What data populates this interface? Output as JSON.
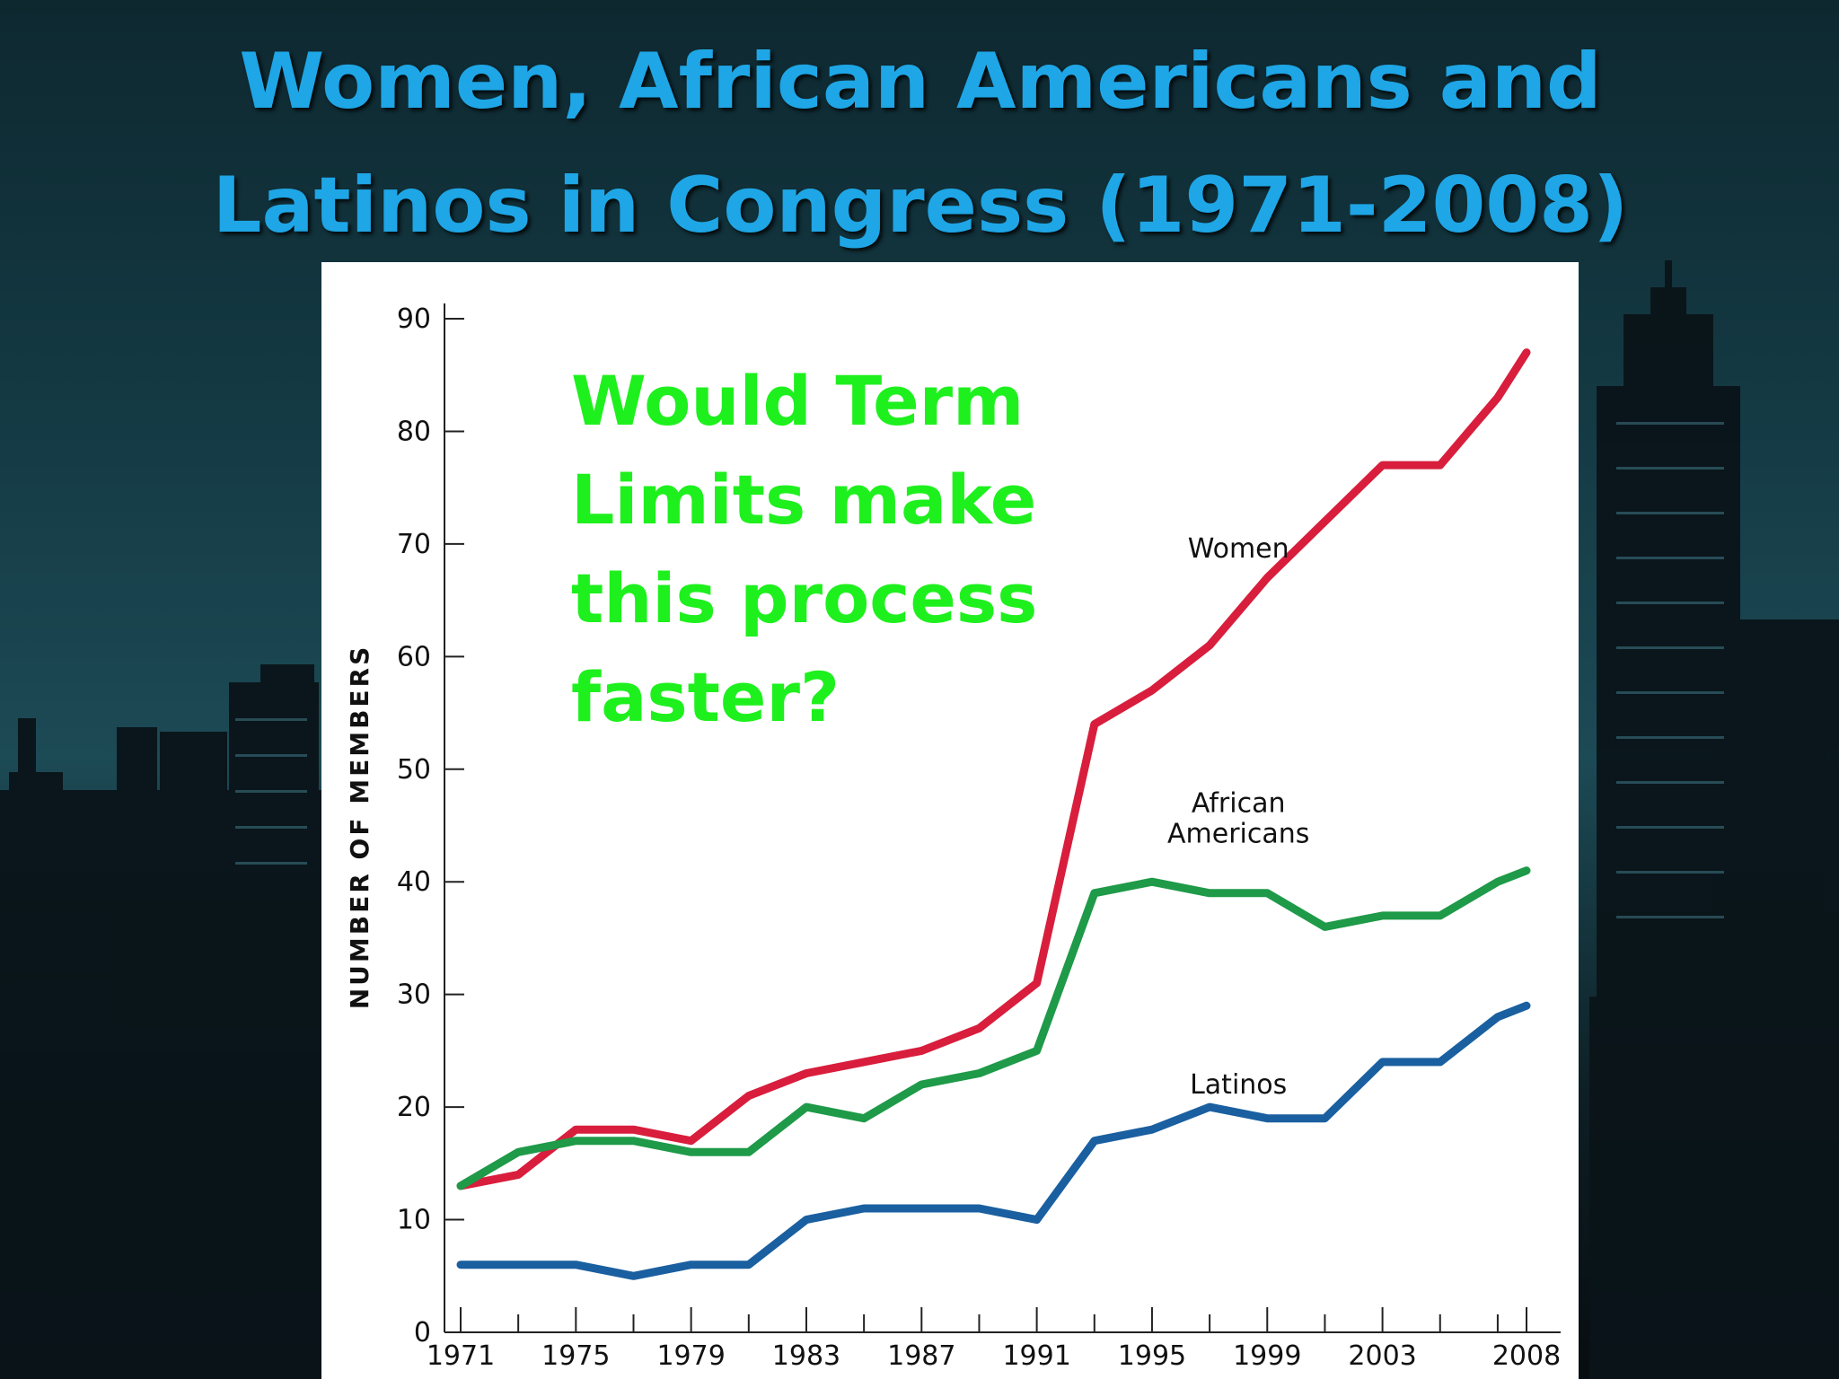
{
  "slide": {
    "title_line1": "Women, African Americans and",
    "title_line2": "Latinos in Congress (1971-2008)",
    "title_color": "#1ea6e6"
  },
  "annotation": {
    "lines": [
      "Would Term",
      "Limits make",
      "this process",
      "faster?"
    ],
    "color": "#1ef01e"
  },
  "chart_data": {
    "type": "line",
    "title": "",
    "xlabel": "",
    "ylabel": "NUMBER OF MEMBERS",
    "ylim": [
      0,
      90
    ],
    "yticks": [
      0,
      10,
      20,
      30,
      40,
      50,
      60,
      70,
      80,
      90
    ],
    "xlim": [
      1971,
      2008
    ],
    "xticks_labeled": [
      1971,
      1975,
      1979,
      1983,
      1987,
      1991,
      1995,
      1999,
      2003,
      2008
    ],
    "xticks_minor": [
      1973,
      1977,
      1981,
      1985,
      1989,
      1993,
      1997,
      2001,
      2005,
      2007
    ],
    "x": [
      1971,
      1973,
      1975,
      1977,
      1979,
      1981,
      1983,
      1985,
      1987,
      1989,
      1991,
      1993,
      1995,
      1997,
      1999,
      2001,
      2003,
      2005,
      2007,
      2008
    ],
    "series": [
      {
        "name": "Women",
        "label_lines": [
          "Women"
        ],
        "color": "#d81e3c",
        "values": [
          13,
          14,
          18,
          18,
          17,
          21,
          23,
          24,
          25,
          27,
          31,
          54,
          57,
          61,
          67,
          72,
          77,
          77,
          83,
          87
        ]
      },
      {
        "name": "African Americans",
        "label_lines": [
          "African",
          "Americans"
        ],
        "color": "#1e9a48",
        "values": [
          13,
          16,
          17,
          17,
          16,
          16,
          20,
          19,
          22,
          23,
          25,
          39,
          40,
          39,
          39,
          36,
          37,
          37,
          40,
          41
        ]
      },
      {
        "name": "Latinos",
        "label_lines": [
          "Latinos"
        ],
        "color": "#1a5fa0",
        "values": [
          6,
          6,
          6,
          5,
          6,
          6,
          10,
          11,
          11,
          11,
          10,
          17,
          18,
          20,
          19,
          19,
          24,
          24,
          28,
          29
        ]
      }
    ],
    "grid": false,
    "legend": "inline labels"
  }
}
